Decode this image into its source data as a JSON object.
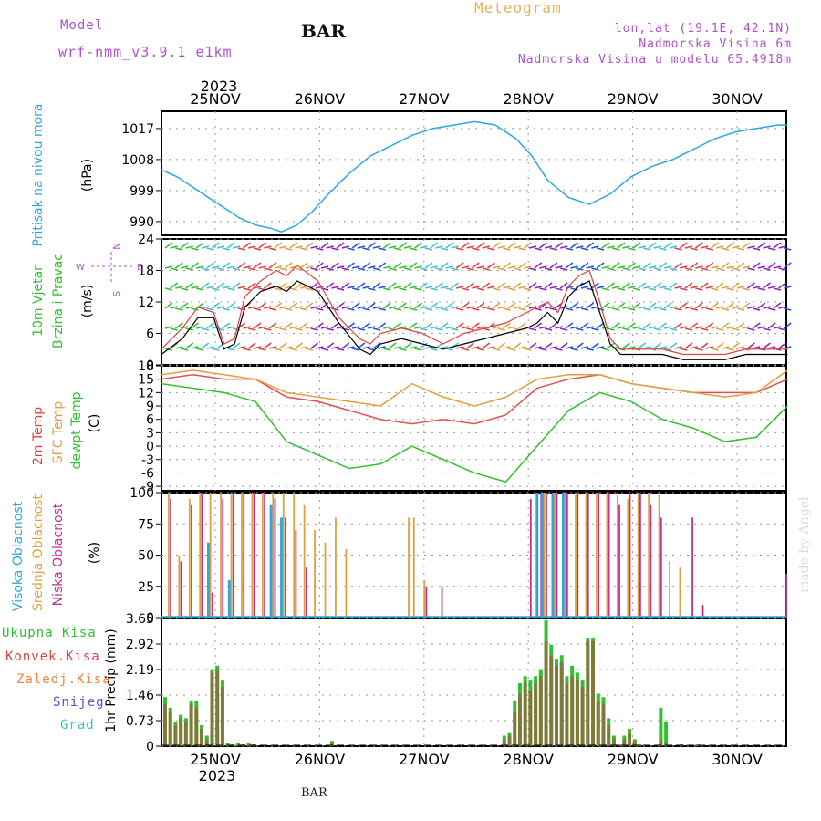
{
  "header": {
    "model_label": "Model",
    "model_name": "wrf-nmm_v3.9.1 e1km",
    "station": "BAR",
    "title": "Meteogram",
    "location": "lon,lat (19.1E, 42.1N)",
    "altitude": "Nadmorska Visina 6m",
    "model_altitude": "Nadmorska Visina u modelu 65.4918m"
  },
  "footer": {
    "station": "BAR",
    "credit": "made by Angel"
  },
  "time_axis": {
    "year": "2023",
    "days": [
      "25NOV",
      "26NOV",
      "27NOV",
      "28NOV",
      "29NOV",
      "30NOV"
    ]
  },
  "wind_compass": {
    "n": "N",
    "e": "E",
    "s": "S",
    "w": "W"
  },
  "colors": {
    "pressure": "#2aa8e0",
    "wind_speed": "#000000",
    "gust": "#e04040",
    "temp_2m": "#e05050",
    "temp_sfc": "#e0a040",
    "dewpoint": "#30c030",
    "cloud_high": "#2aa8e0",
    "cloud_mid": "#e0a040",
    "cloud_low": "#c03090",
    "precip_total": "#30c030",
    "precip_conv": "#c04040",
    "label_green": "#30c030",
    "label_red": "#e04040",
    "label_orange": "#f08040",
    "label_blue": "#5050e0",
    "label_cyan": "#40c0c0",
    "label_violet": "#b050d0",
    "label_lightblue": "#2aa8e0"
  },
  "chart_data": [
    {
      "type": "line",
      "panel": "pressure",
      "ylabel": [
        "Pritisak na nivou mora",
        "(hPa)"
      ],
      "yticks": [
        "990",
        "999",
        "1008",
        "1017"
      ],
      "ylim": [
        986,
        1022
      ],
      "x": [
        0,
        0.15,
        0.3,
        0.45,
        0.6,
        0.75,
        0.9,
        1.05,
        1.15,
        1.3,
        1.45,
        1.6,
        1.8,
        2.0,
        2.2,
        2.4,
        2.6,
        2.8,
        3.0,
        3.2,
        3.4,
        3.55,
        3.7,
        3.9,
        4.1,
        4.3,
        4.5,
        4.7,
        4.9,
        5.1,
        5.3,
        5.5,
        5.7,
        5.9,
        6.0
      ],
      "series": [
        {
          "values": [
            1005,
            1003,
            1000,
            997,
            994,
            991,
            989,
            988,
            987,
            989,
            993,
            998,
            1004,
            1009,
            1012,
            1015,
            1017,
            1018,
            1019,
            1018,
            1014,
            1009,
            1002,
            997,
            995,
            998,
            1003,
            1006,
            1008,
            1011,
            1014,
            1016,
            1017,
            1018,
            1018
          ]
        }
      ],
      "grid": true
    },
    {
      "type": "line",
      "panel": "wind",
      "ylabel": [
        "10m Vjetar",
        "Brzina i Pravac",
        "(m/s)"
      ],
      "yticks": [
        "0",
        "6",
        "12",
        "18",
        "24"
      ],
      "ylim": [
        0,
        24
      ],
      "x": [
        0,
        0.2,
        0.35,
        0.5,
        0.6,
        0.7,
        0.8,
        0.95,
        1.1,
        1.2,
        1.3,
        1.5,
        1.7,
        1.9,
        2.0,
        2.1,
        2.3,
        2.5,
        2.7,
        2.9,
        3.1,
        3.3,
        3.5,
        3.6,
        3.7,
        3.8,
        3.9,
        4.0,
        4.1,
        4.2,
        4.3,
        4.4,
        4.6,
        4.8,
        5.0,
        5.2,
        5.4,
        5.6,
        5.8,
        6.0
      ],
      "series": [
        {
          "name": "wind",
          "values": [
            2,
            5,
            9,
            9,
            3,
            4,
            11,
            14,
            15,
            14,
            16,
            14,
            8,
            3,
            2,
            4,
            5,
            4,
            3,
            4,
            5,
            6,
            7,
            8,
            10,
            8,
            13,
            15,
            16,
            10,
            4,
            2,
            2,
            2,
            1,
            1,
            1,
            2,
            2,
            2
          ]
        },
        {
          "name": "gust",
          "values": [
            3,
            7,
            11,
            10,
            4,
            5,
            13,
            16,
            18,
            17,
            19,
            16,
            9,
            5,
            4,
            6,
            7,
            6,
            4,
            6,
            7,
            8,
            10,
            11,
            12,
            10,
            15,
            17,
            18,
            12,
            5,
            3,
            3,
            3,
            2,
            2,
            2,
            3,
            3,
            3
          ]
        }
      ],
      "grid": true
    },
    {
      "type": "line",
      "panel": "temperature",
      "ylabel": [
        "2m Temp",
        "SFC Temp",
        "dewpt Temp",
        "(C)"
      ],
      "yticks": [
        "18",
        "15",
        "12",
        "9",
        "6",
        "3",
        "0",
        "-3",
        "-6",
        "-9"
      ],
      "ylim": [
        -10,
        18
      ],
      "x": [
        0,
        0.3,
        0.6,
        0.9,
        1.2,
        1.5,
        1.8,
        2.1,
        2.4,
        2.7,
        3.0,
        3.3,
        3.6,
        3.9,
        4.2,
        4.5,
        4.8,
        5.1,
        5.4,
        5.7,
        6.0
      ],
      "series": [
        {
          "name": "2m Temp",
          "values": [
            15,
            16,
            15,
            15,
            11,
            10,
            8,
            6,
            5,
            6,
            5,
            7,
            13,
            15,
            16,
            14,
            13,
            12,
            12,
            12,
            15
          ]
        },
        {
          "name": "SFC Temp",
          "values": [
            16,
            17,
            16,
            15,
            12,
            11,
            10,
            9,
            14,
            11,
            9,
            11,
            15,
            16,
            16,
            14,
            13,
            12,
            11,
            12,
            17
          ]
        },
        {
          "name": "dewpt Temp",
          "values": [
            14,
            13,
            12,
            10,
            1,
            -2,
            -5,
            -4,
            0,
            -3,
            -6,
            -8,
            0,
            8,
            12,
            10,
            6,
            4,
            1,
            2,
            9
          ]
        }
      ],
      "grid": true
    },
    {
      "type": "bar",
      "panel": "cloud",
      "ylabel": [
        "Visoka Oblacnost",
        "Srednja Oblacnost",
        "Niska Oblacnost",
        "(%)"
      ],
      "yticks": [
        "0",
        "25",
        "50",
        "75",
        "100"
      ],
      "ylim": [
        0,
        100
      ],
      "x": [
        0.05,
        0.15,
        0.25,
        0.35,
        0.45,
        0.55,
        0.65,
        0.75,
        0.85,
        0.95,
        1.05,
        1.15,
        1.25,
        1.35,
        1.45,
        1.55,
        1.65,
        1.75,
        1.85,
        2.0,
        2.35,
        2.4,
        2.5,
        2.65,
        3.0,
        3.5,
        3.6,
        3.65,
        3.75,
        3.85,
        3.95,
        4.05,
        4.15,
        4.25,
        4.35,
        4.45,
        4.55,
        4.65,
        4.75,
        4.85,
        4.95,
        5.05,
        5.15,
        5.25,
        5.4,
        5.5,
        5.95
      ],
      "series": [
        {
          "name": "Visoka",
          "values": [
            0,
            0,
            0,
            0,
            60,
            0,
            30,
            0,
            0,
            0,
            90,
            80,
            0,
            0,
            0,
            0,
            0,
            0,
            0,
            0,
            0,
            0,
            0,
            0,
            0,
            0,
            100,
            100,
            100,
            100,
            0,
            0,
            0,
            0,
            0,
            0,
            0,
            0,
            0,
            0,
            0,
            0,
            0,
            0,
            0,
            0,
            0
          ]
        },
        {
          "name": "Srednja",
          "values": [
            100,
            50,
            95,
            100,
            100,
            100,
            100,
            100,
            100,
            100,
            100,
            100,
            100,
            90,
            70,
            60,
            80,
            55,
            0,
            0,
            80,
            80,
            30,
            0,
            0,
            0,
            0,
            100,
            100,
            100,
            100,
            100,
            100,
            100,
            100,
            95,
            100,
            100,
            100,
            45,
            40,
            0,
            0,
            0,
            0,
            0,
            0
          ]
        },
        {
          "name": "Niska",
          "values": [
            95,
            45,
            90,
            100,
            20,
            95,
            100,
            100,
            100,
            100,
            95,
            80,
            70,
            40,
            0,
            0,
            0,
            0,
            0,
            0,
            0,
            0,
            25,
            25,
            0,
            95,
            100,
            100,
            100,
            100,
            100,
            100,
            100,
            100,
            90,
            100,
            100,
            90,
            80,
            0,
            0,
            80,
            10,
            0,
            0,
            0,
            35
          ]
        }
      ],
      "grid": true
    },
    {
      "type": "bar",
      "panel": "precipitation",
      "ylabel": [
        "1hr Precip (mm)"
      ],
      "yticks": [
        "0",
        "0.73",
        "1.46",
        "2.19",
        "2.92",
        "3.65"
      ],
      "ylim": [
        0,
        3.65
      ],
      "x": [
        0.0,
        0.05,
        0.1,
        0.15,
        0.2,
        0.25,
        0.3,
        0.35,
        0.4,
        0.45,
        0.5,
        0.55,
        0.6,
        0.65,
        0.7,
        0.75,
        0.8,
        0.85,
        1.6,
        3.25,
        3.3,
        3.35,
        3.4,
        3.45,
        3.5,
        3.55,
        3.6,
        3.65,
        3.7,
        3.75,
        3.8,
        3.85,
        3.9,
        3.95,
        4.0,
        4.05,
        4.1,
        4.15,
        4.2,
        4.25,
        4.3,
        4.35,
        4.4,
        4.45,
        4.5,
        4.55,
        4.75,
        4.8,
        4.95,
        5.1
      ],
      "series": [
        {
          "name": "Ukupna Kisa",
          "values": [
            1.4,
            1.1,
            0.7,
            0.9,
            0.8,
            1.3,
            1.3,
            0.6,
            0.3,
            2.2,
            2.3,
            1.9,
            0.1,
            0.05,
            0.1,
            0.05,
            0.1,
            0.05,
            0.15,
            0.3,
            0.4,
            1.3,
            1.8,
            2.0,
            1.9,
            2.0,
            2.2,
            3.6,
            2.9,
            2.5,
            2.6,
            2.0,
            2.3,
            2.1,
            1.9,
            3.1,
            3.1,
            1.5,
            1.4,
            0.8,
            0.3,
            0.05,
            0.3,
            0.5,
            0.2,
            0.05,
            1.1,
            0.7,
            0.05,
            0.05
          ]
        },
        {
          "name": "Konvek.Kisa",
          "values": [
            1.2,
            1.0,
            0.6,
            0.8,
            0.7,
            1.2,
            1.1,
            0.5,
            0.2,
            2.1,
            2.2,
            1.7,
            0.05,
            0.05,
            0.05,
            0.05,
            0.05,
            0.05,
            0.1,
            0.2,
            0.3,
            1.0,
            1.5,
            1.8,
            1.6,
            1.8,
            2.0,
            3.0,
            2.6,
            2.3,
            2.4,
            1.8,
            2.0,
            1.9,
            1.7,
            3.0,
            3.0,
            1.3,
            1.2,
            0.6,
            0.2,
            0.05,
            0.2,
            0.4,
            0.15,
            0.05,
            0.2,
            0.1,
            0.05,
            0.05
          ]
        }
      ],
      "grid": true
    }
  ],
  "precip_legend": [
    {
      "label": "Ukupna Kisa",
      "color_key": "label_green"
    },
    {
      "label": "Konvek.Kisa",
      "color_key": "label_red"
    },
    {
      "label": "Zaledj.Kisa",
      "color_key": "label_orange"
    },
    {
      "label": "Snijeg",
      "color_key": "label_blue"
    },
    {
      "label": "Grad",
      "color_key": "label_cyan"
    }
  ]
}
